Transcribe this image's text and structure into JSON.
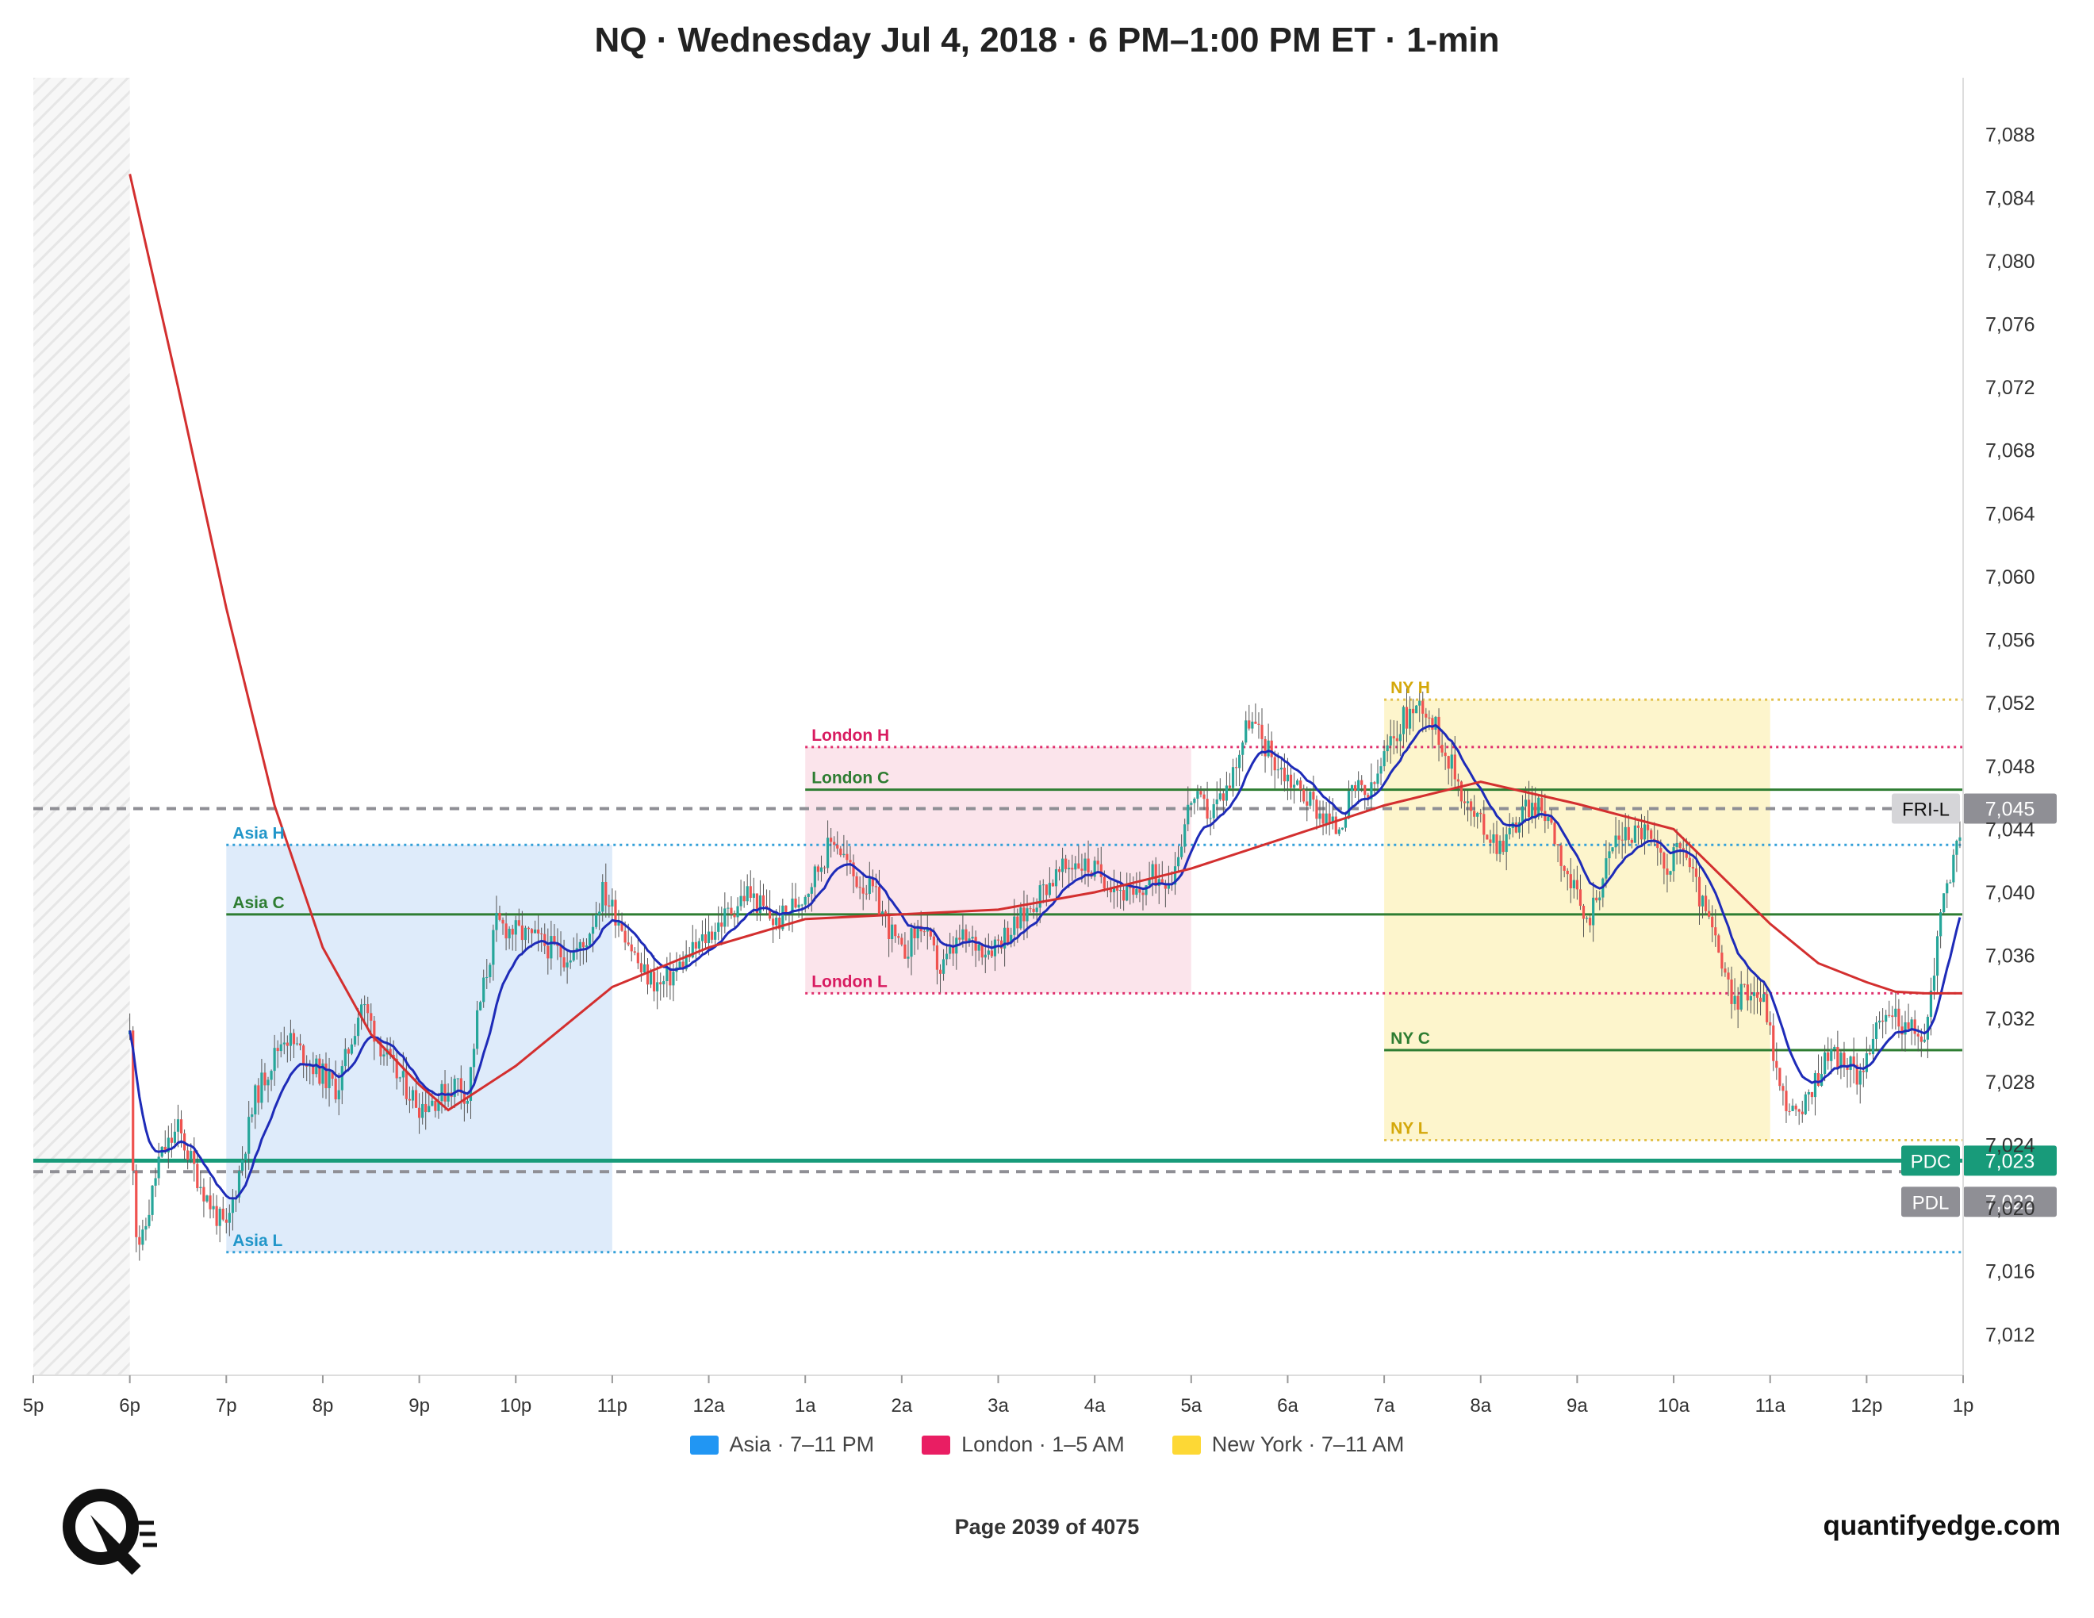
{
  "chart_data": {
    "type": "candlestick",
    "title": "NQ · Wednesday Jul 4, 2018 · 6 PM–1:00 PM ET · 1-min",
    "x_ticks": [
      "5p",
      "6p",
      "7p",
      "8p",
      "9p",
      "10p",
      "11p",
      "12a",
      "1a",
      "2a",
      "3a",
      "4a",
      "5a",
      "6a",
      "7a",
      "8a",
      "9a",
      "10a",
      "11a",
      "12p",
      "1p"
    ],
    "y_ticks": [
      "7,012",
      "7,016",
      "7,020",
      "7,024",
      "7,028",
      "7,032",
      "7,036",
      "7,040",
      "7,044",
      "7,048",
      "7,052",
      "7,056",
      "7,060",
      "7,064",
      "7,068",
      "7,072",
      "7,076",
      "7,080",
      "7,084",
      "7,088"
    ],
    "x_range_hours": [
      -1,
      19
    ],
    "y_range": [
      7009.4,
      7091.6
    ],
    "sessions": [
      {
        "key": "asia",
        "label": "Asia · 7–11 PM",
        "start": 1,
        "end": 5,
        "color": "#2196f3",
        "fill": "#dceafa",
        "high": 7043.0,
        "high_label": "Asia H",
        "low": 7017.2,
        "low_label": "Asia L",
        "close": 7038.6,
        "close_label": "Asia C"
      },
      {
        "key": "london",
        "label": "London · 1–5 AM",
        "start": 7,
        "end": 11,
        "color": "#e91e63",
        "fill": "#fbe3ea",
        "high": 7049.2,
        "high_label": "London H",
        "low": 7033.6,
        "low_label": "London L",
        "close": 7046.5,
        "close_label": "London C"
      },
      {
        "key": "newyork",
        "label": "New York · 7–11 AM",
        "start": 13,
        "end": 17,
        "color": "#fdd835",
        "fill": "#fdf4c9",
        "high": 7052.2,
        "high_label": "NY H",
        "low": 7024.3,
        "low_label": "NY L",
        "close": 7030.0,
        "close_label": "NY C"
      }
    ],
    "reference_levels": [
      {
        "label": "FRI-L",
        "value": 7045.3,
        "value_label": "7,045",
        "color": "#8f8f95",
        "style": "dashed"
      },
      {
        "label": "PDC",
        "value": 7023.0,
        "value_label": "7,023",
        "color": "#189b7a",
        "style": "solid"
      },
      {
        "label": "PDL",
        "value": 7022.3,
        "value_label": "7,022",
        "color": "#8f8f95",
        "style": "dashed"
      }
    ],
    "price_path_hours": [
      0.0,
      0.05,
      0.12,
      0.3,
      0.5,
      0.7,
      0.85,
      1.0,
      1.3,
      1.6,
      1.9,
      2.15,
      2.4,
      2.7,
      3.0,
      3.2,
      3.4,
      3.5,
      3.6,
      3.8,
      4.2,
      4.5,
      4.7,
      4.9,
      5.1,
      5.3,
      5.5,
      5.8,
      6.1,
      6.4,
      6.7,
      7.0,
      7.3,
      7.5,
      7.7,
      8.0,
      8.2,
      8.4,
      8.6,
      8.9,
      9.2,
      9.5,
      9.8,
      10.1,
      10.4,
      10.6,
      10.8,
      11.0,
      11.2,
      11.4,
      11.6,
      11.9,
      12.2,
      12.5,
      12.7,
      12.85,
      13.0,
      13.2,
      13.4,
      13.6,
      13.9,
      14.2,
      14.5,
      14.7,
      14.9,
      15.1,
      15.4,
      15.7,
      15.9,
      16.1,
      16.25,
      16.4,
      16.6,
      16.8,
      16.95,
      17.1,
      17.3,
      17.6,
      17.9,
      18.1,
      18.25,
      18.4,
      18.6,
      18.8,
      18.95,
      19.0
    ],
    "price_path_values": [
      7031.0,
      7019.0,
      7017.5,
      7023.0,
      7025.0,
      7022.0,
      7020.0,
      7018.5,
      7027.0,
      7031.0,
      7029.0,
      7027.5,
      7033.0,
      7029.0,
      7026.5,
      7027.0,
      7028.0,
      7027.0,
      7032.0,
      7038.0,
      7037.0,
      7036.0,
      7036.5,
      7040.0,
      7038.0,
      7035.0,
      7034.0,
      7036.0,
      7038.0,
      7040.0,
      7038.0,
      7040.0,
      7043.5,
      7041.0,
      7040.0,
      7036.0,
      7038.0,
      7035.0,
      7037.0,
      7036.5,
      7038.0,
      7040.5,
      7042.0,
      7041.0,
      7039.5,
      7041.0,
      7041.0,
      7046.0,
      7045.0,
      7047.0,
      7051.0,
      7048.0,
      7046.0,
      7044.0,
      7046.5,
      7046.0,
      7048.5,
      7051.0,
      7052.0,
      7049.5,
      7045.0,
      7043.0,
      7045.5,
      7045.0,
      7041.0,
      7038.0,
      7043.5,
      7044.0,
      7041.5,
      7043.0,
      7040.0,
      7037.5,
      7033.0,
      7034.0,
      7033.0,
      7027.5,
      7025.5,
      7030.0,
      7028.5,
      7031.0,
      7032.5,
      7031.5,
      7030.5,
      7040.0,
      7043.0,
      7042.5
    ],
    "ema_fast_color": "#1e2bb8",
    "ema_slow_color": "#d32f2f",
    "ema_slow_hours": [
      0.0,
      0.5,
      1.0,
      1.5,
      2.0,
      2.5,
      3.0,
      3.3,
      4.0,
      5.0,
      6.0,
      7.0,
      8.0,
      9.0,
      10.0,
      11.0,
      12.0,
      13.0,
      14.0,
      15.0,
      16.0,
      17.0,
      17.5,
      18.0,
      18.3,
      18.6,
      19.0
    ],
    "ema_slow_values": [
      7085.5,
      7072.0,
      7058.0,
      7045.5,
      7036.5,
      7031.0,
      7027.8,
      7026.2,
      7029.0,
      7034.0,
      7036.5,
      7038.3,
      7038.6,
      7038.9,
      7040.0,
      7041.5,
      7043.5,
      7045.5,
      7047.0,
      7045.6,
      7044.0,
      7038.0,
      7035.5,
      7034.3,
      7033.7,
      7033.6,
      7033.6
    ],
    "shaded_region_hours": [
      -1,
      0
    ]
  },
  "axis_price_tags": {
    "fri_l": "7,045",
    "pdc": "7,023",
    "pdl": "7,022"
  },
  "legend": {
    "asia": "Asia · 7–11 PM",
    "london": "London · 1–5 AM",
    "newyork": "New York · 7–11 AM"
  },
  "footer": {
    "page": "Page 2039 of 4075",
    "site": "quantifyedge.com"
  },
  "logo": {
    "icon": "quantifyedge-logo-icon"
  }
}
